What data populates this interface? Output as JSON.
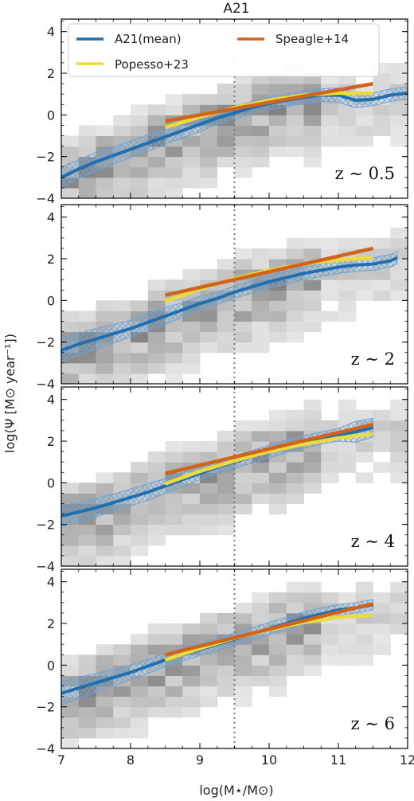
{
  "chart_data": {
    "type": "line",
    "title": "A21",
    "xlabel": "log(M⋆/M⊙)",
    "ylabel": "log(Ψ [M⊙ year⁻¹])",
    "xlim": [
      7,
      12
    ],
    "ylim": [
      -4,
      4.6
    ],
    "xticks": [
      "7",
      "8",
      "9",
      "10",
      "11",
      "12"
    ],
    "yticks": [
      "−4",
      "−2",
      "0",
      "2",
      "4"
    ],
    "vline_x": 9.5,
    "legend": {
      "placement": "top-left",
      "entries": [
        {
          "label": "A21(mean)",
          "color": "#1f6fb4"
        },
        {
          "label": "Speagle+14",
          "color": "#d0641c"
        },
        {
          "label": "Popesso+23",
          "color": "#ecdc3a"
        }
      ]
    },
    "colors": {
      "mean": "#1f6fb4",
      "band": "#6ea3d4",
      "speagle": "#d0641c",
      "popesso": "#ecdc3a"
    },
    "panels": [
      {
        "label": "z ∼ 0.5",
        "mean": {
          "x": [
            7.0,
            7.25,
            7.5,
            7.75,
            8.0,
            8.25,
            8.5,
            8.75,
            9.0,
            9.25,
            9.5,
            9.75,
            10.0,
            10.25,
            10.5,
            10.75,
            11.0,
            11.25,
            11.5,
            11.75,
            12.0
          ],
          "y": [
            -3.0,
            -2.6,
            -2.25,
            -1.95,
            -1.65,
            -1.35,
            -1.05,
            -0.75,
            -0.45,
            -0.15,
            0.1,
            0.35,
            0.55,
            0.7,
            0.85,
            0.95,
            0.95,
            0.7,
            0.75,
            0.95,
            1.05
          ],
          "err": [
            0.5,
            0.45,
            0.45,
            0.4,
            0.4,
            0.4,
            0.35,
            0.35,
            0.35,
            0.3,
            0.3,
            0.3,
            0.3,
            0.3,
            0.3,
            0.3,
            0.35,
            0.35,
            0.3,
            0.3,
            0.3
          ]
        },
        "speagle": {
          "x": [
            8.5,
            11.5
          ],
          "y": [
            -0.3,
            1.5
          ]
        },
        "popesso": {
          "x": [
            8.5,
            9.0,
            9.5,
            10.0,
            10.5,
            11.0,
            11.5
          ],
          "y": [
            -0.6,
            -0.1,
            0.35,
            0.7,
            0.95,
            1.05,
            1.05
          ]
        }
      },
      {
        "label": "z ∼ 2",
        "mean": {
          "x": [
            7.0,
            7.25,
            7.5,
            7.75,
            8.0,
            8.25,
            8.5,
            8.75,
            9.0,
            9.25,
            9.5,
            9.75,
            10.0,
            10.25,
            10.5,
            10.75,
            11.0,
            11.25,
            11.5,
            11.75,
            11.85
          ],
          "y": [
            -2.4,
            -2.1,
            -1.85,
            -1.6,
            -1.35,
            -1.05,
            -0.75,
            -0.45,
            -0.15,
            0.1,
            0.4,
            0.65,
            0.9,
            1.1,
            1.3,
            1.45,
            1.6,
            1.7,
            1.75,
            1.9,
            2.05
          ],
          "err": [
            0.55,
            0.5,
            0.5,
            0.45,
            0.4,
            0.4,
            0.4,
            0.35,
            0.35,
            0.3,
            0.3,
            0.3,
            0.3,
            0.3,
            0.3,
            0.3,
            0.3,
            0.3,
            0.3,
            0.3,
            0.3
          ]
        },
        "speagle": {
          "x": [
            8.5,
            11.5
          ],
          "y": [
            0.25,
            2.5
          ]
        },
        "popesso": {
          "x": [
            8.5,
            9.0,
            9.5,
            10.0,
            10.5,
            11.0,
            11.5
          ],
          "y": [
            -0.05,
            0.55,
            1.05,
            1.45,
            1.75,
            1.95,
            2.05
          ]
        }
      },
      {
        "label": "z ∼ 4",
        "mean": {
          "x": [
            7.0,
            7.25,
            7.5,
            7.75,
            8.0,
            8.25,
            8.5,
            8.75,
            9.0,
            9.25,
            9.5,
            9.75,
            10.0,
            10.25,
            10.5,
            10.75,
            11.0,
            11.25,
            11.5
          ],
          "y": [
            -1.6,
            -1.4,
            -1.2,
            -0.95,
            -0.7,
            -0.45,
            -0.15,
            0.15,
            0.45,
            0.75,
            1.0,
            1.25,
            1.5,
            1.75,
            1.95,
            2.15,
            2.3,
            2.45,
            2.65
          ],
          "err": [
            0.5,
            0.45,
            0.45,
            0.4,
            0.4,
            0.4,
            0.35,
            0.35,
            0.3,
            0.3,
            0.3,
            0.3,
            0.3,
            0.3,
            0.3,
            0.3,
            0.3,
            0.5,
            0.45
          ]
        },
        "speagle": {
          "x": [
            8.5,
            11.5
          ],
          "y": [
            0.45,
            2.8
          ]
        },
        "popesso": {
          "x": [
            8.5,
            9.0,
            9.5,
            10.0,
            10.5,
            11.0,
            11.5
          ],
          "y": [
            -0.05,
            0.55,
            1.05,
            1.5,
            1.85,
            2.15,
            2.35
          ]
        }
      },
      {
        "label": "z ∼ 6",
        "mean": {
          "x": [
            7.0,
            7.25,
            7.5,
            7.75,
            8.0,
            8.25,
            8.5,
            8.75,
            9.0,
            9.25,
            9.5,
            9.75,
            10.0,
            10.25,
            10.5,
            10.75,
            11.0,
            11.25,
            11.5
          ],
          "y": [
            -1.35,
            -1.1,
            -0.85,
            -0.6,
            -0.35,
            -0.05,
            0.25,
            0.5,
            0.75,
            1.0,
            1.25,
            1.5,
            1.75,
            2.0,
            2.25,
            2.45,
            2.65,
            2.75,
            2.9
          ],
          "err": [
            0.55,
            0.5,
            0.45,
            0.4,
            0.35,
            0.35,
            0.3,
            0.3,
            0.3,
            0.3,
            0.3,
            0.3,
            0.3,
            0.3,
            0.3,
            0.3,
            0.25,
            0.25,
            0.25
          ]
        },
        "speagle": {
          "x": [
            8.5,
            11.5
          ],
          "y": [
            0.5,
            2.95
          ]
        },
        "popesso": {
          "x": [
            8.5,
            9.0,
            9.5,
            10.0,
            10.5,
            11.0,
            11.5
          ],
          "y": [
            0.25,
            0.8,
            1.3,
            1.7,
            2.05,
            2.3,
            2.4
          ]
        }
      }
    ]
  }
}
